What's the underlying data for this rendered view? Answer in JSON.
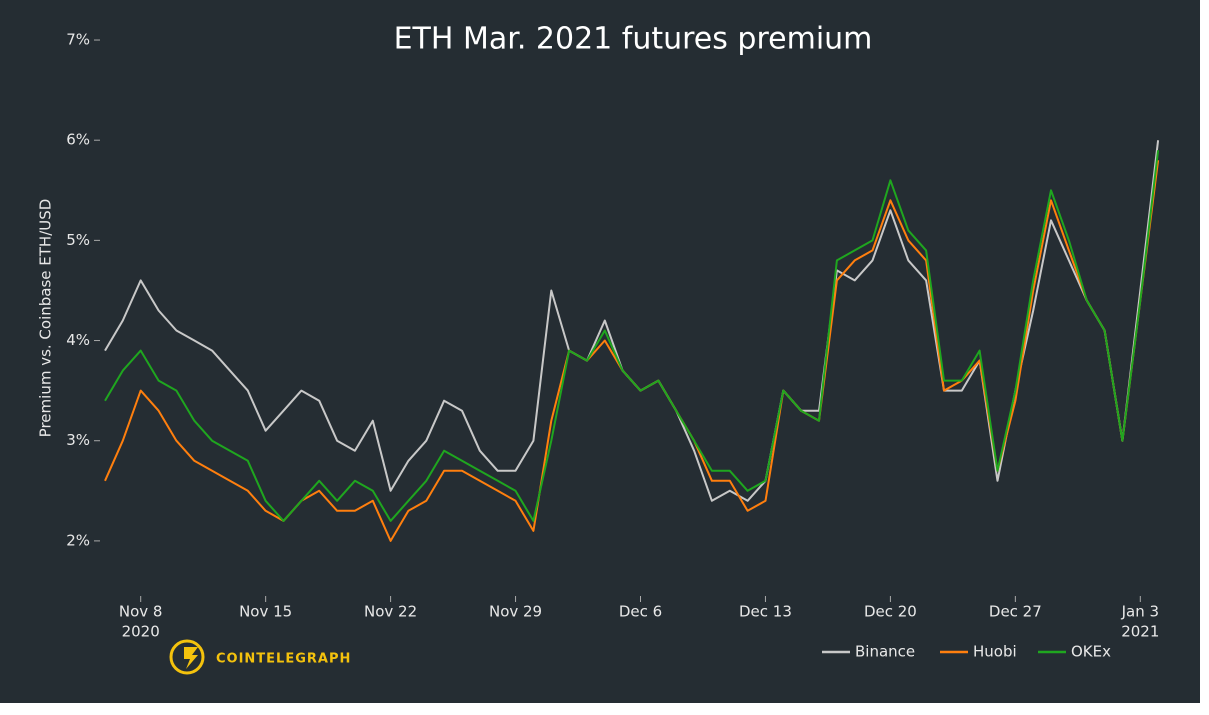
{
  "chart_data": {
    "type": "line",
    "title": "ETH Mar. 2021 futures premium",
    "y_label": "Premium vs. Coinbase ETH/USD",
    "brand": "COINTELEGRAPH",
    "x": [
      "2020-11-06",
      "2020-11-07",
      "2020-11-08",
      "2020-11-09",
      "2020-11-10",
      "2020-11-11",
      "2020-11-12",
      "2020-11-13",
      "2020-11-14",
      "2020-11-15",
      "2020-11-16",
      "2020-11-17",
      "2020-11-18",
      "2020-11-19",
      "2020-11-20",
      "2020-11-21",
      "2020-11-22",
      "2020-11-23",
      "2020-11-24",
      "2020-11-25",
      "2020-11-26",
      "2020-11-27",
      "2020-11-28",
      "2020-11-29",
      "2020-11-30",
      "2020-12-01",
      "2020-12-02",
      "2020-12-03",
      "2020-12-04",
      "2020-12-05",
      "2020-12-06",
      "2020-12-07",
      "2020-12-08",
      "2020-12-09",
      "2020-12-10",
      "2020-12-11",
      "2020-12-12",
      "2020-12-13",
      "2020-12-14",
      "2020-12-15",
      "2020-12-16",
      "2020-12-17",
      "2020-12-18",
      "2020-12-19",
      "2020-12-20",
      "2020-12-21",
      "2020-12-22",
      "2020-12-23",
      "2020-12-24",
      "2020-12-25",
      "2020-12-26",
      "2020-12-27",
      "2020-12-28",
      "2020-12-29",
      "2020-12-30",
      "2020-12-31",
      "2021-01-01",
      "2021-01-02",
      "2021-01-03",
      "2021-01-04"
    ],
    "series": [
      {
        "name": "Binance",
        "color": "#c8c8c8",
        "values": [
          3.9,
          4.2,
          4.6,
          4.3,
          4.1,
          4.0,
          3.9,
          3.7,
          3.5,
          3.1,
          3.3,
          3.5,
          3.4,
          3.0,
          2.9,
          3.2,
          2.5,
          2.8,
          3.0,
          3.4,
          3.3,
          2.9,
          2.7,
          2.7,
          3.0,
          4.5,
          3.9,
          3.8,
          4.2,
          3.7,
          3.5,
          3.6,
          3.3,
          2.9,
          2.4,
          2.5,
          2.4,
          2.6,
          3.5,
          3.3,
          3.3,
          4.7,
          4.6,
          4.8,
          5.3,
          4.8,
          4.6,
          3.5,
          3.5,
          3.8,
          2.6,
          3.5,
          4.3,
          5.2,
          4.8,
          4.4,
          4.1,
          3.0,
          4.5,
          6.0
        ]
      },
      {
        "name": "Huobi",
        "color": "#ff7f0e",
        "values": [
          2.6,
          3.0,
          3.5,
          3.3,
          3.0,
          2.8,
          2.7,
          2.6,
          2.5,
          2.3,
          2.2,
          2.4,
          2.5,
          2.3,
          2.3,
          2.4,
          2.0,
          2.3,
          2.4,
          2.7,
          2.7,
          2.6,
          2.5,
          2.4,
          2.1,
          3.2,
          3.9,
          3.8,
          4.0,
          3.7,
          3.5,
          3.6,
          3.3,
          3.0,
          2.6,
          2.6,
          2.3,
          2.4,
          3.5,
          3.3,
          3.2,
          4.6,
          4.8,
          4.9,
          5.4,
          5.0,
          4.8,
          3.5,
          3.6,
          3.8,
          2.7,
          3.4,
          4.5,
          5.4,
          4.9,
          4.4,
          4.1,
          3.0,
          4.4,
          5.8
        ]
      },
      {
        "name": "OKEx",
        "color": "#1fa61f",
        "values": [
          3.4,
          3.7,
          3.9,
          3.6,
          3.5,
          3.2,
          3.0,
          2.9,
          2.8,
          2.4,
          2.2,
          2.4,
          2.6,
          2.4,
          2.6,
          2.5,
          2.2,
          2.4,
          2.6,
          2.9,
          2.8,
          2.7,
          2.6,
          2.5,
          2.2,
          3.0,
          3.9,
          3.8,
          4.1,
          3.7,
          3.5,
          3.6,
          3.3,
          3.0,
          2.7,
          2.7,
          2.5,
          2.6,
          3.5,
          3.3,
          3.2,
          4.8,
          4.9,
          5.0,
          5.6,
          5.1,
          4.9,
          3.6,
          3.6,
          3.9,
          2.7,
          3.5,
          4.6,
          5.5,
          5.0,
          4.4,
          4.1,
          3.0,
          4.4,
          5.9
        ]
      }
    ],
    "xlim": [
      "2020-11-06",
      "2021-01-05"
    ],
    "xticks": [
      {
        "value": "2020-11-08",
        "label": "Nov 8",
        "sublabel": "2020"
      },
      {
        "value": "2020-11-15",
        "label": "Nov 15"
      },
      {
        "value": "2020-11-22",
        "label": "Nov 22"
      },
      {
        "value": "2020-11-29",
        "label": "Nov 29"
      },
      {
        "value": "2020-12-06",
        "label": "Dec 6"
      },
      {
        "value": "2020-12-13",
        "label": "Dec 13"
      },
      {
        "value": "2020-12-20",
        "label": "Dec 20"
      },
      {
        "value": "2020-12-27",
        "label": "Dec 27"
      },
      {
        "value": "2021-01-03",
        "label": "Jan 3",
        "sublabel": "2021"
      }
    ],
    "ylim": [
      1.45,
      7.1
    ],
    "yticks": [
      {
        "value": 2,
        "label": "2%"
      },
      {
        "value": 3,
        "label": "3%"
      },
      {
        "value": 4,
        "label": "4%"
      },
      {
        "value": 5,
        "label": "5%"
      },
      {
        "value": 6,
        "label": "6%"
      },
      {
        "value": 7,
        "label": "7%"
      }
    ],
    "legend": "bottom-right"
  }
}
